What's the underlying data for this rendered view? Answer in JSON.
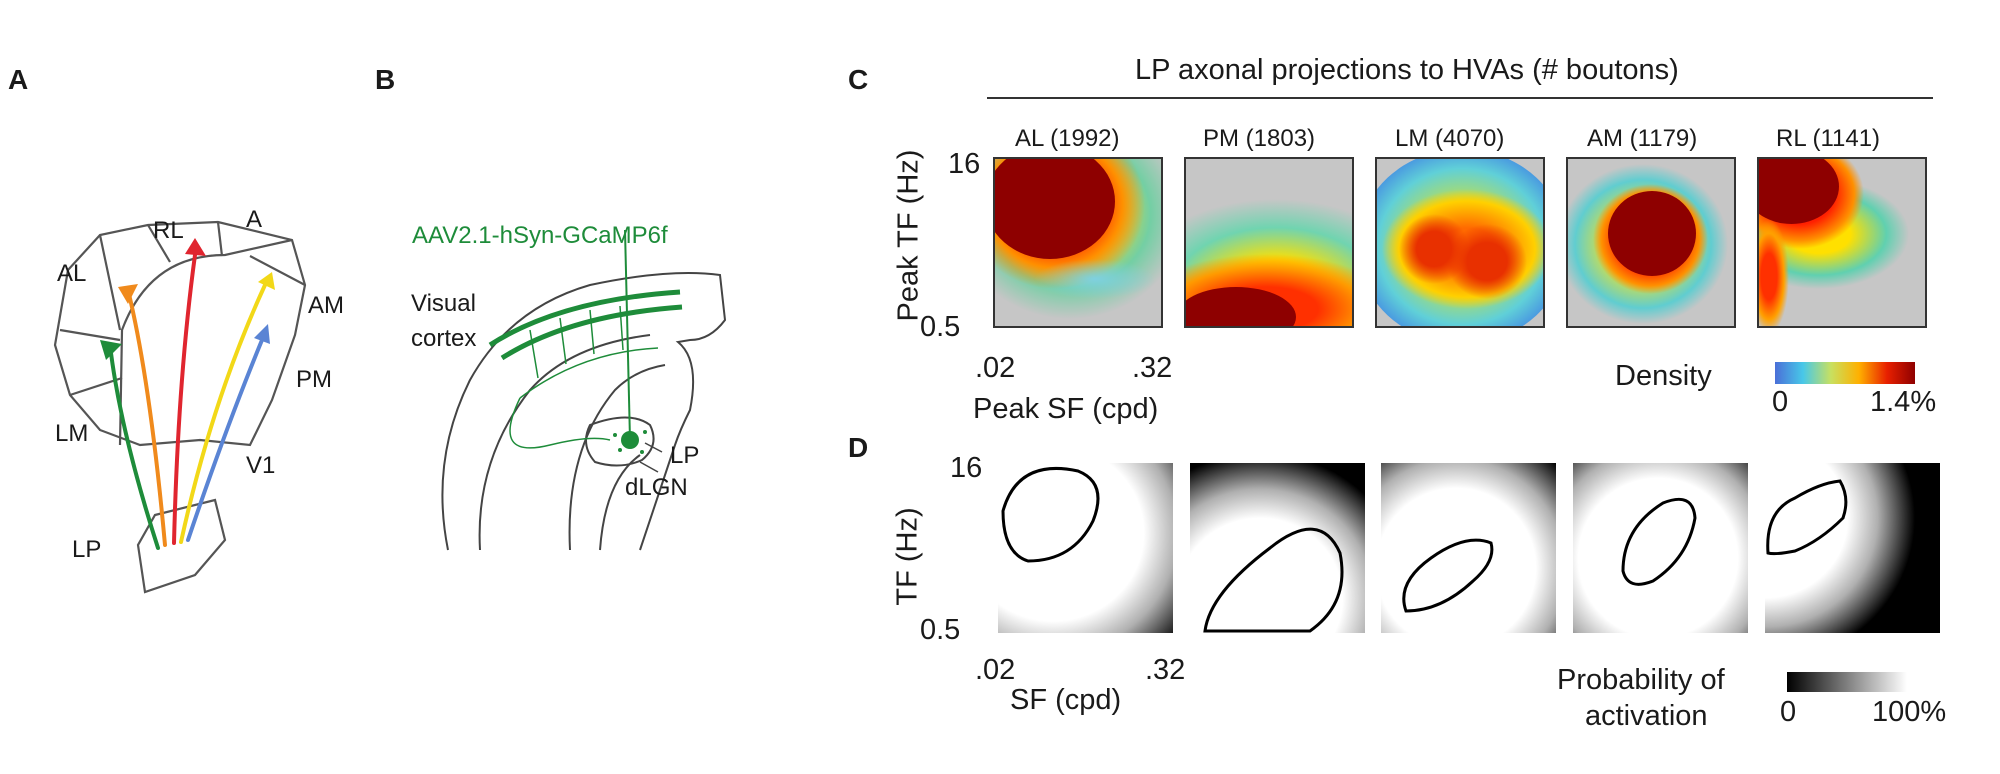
{
  "panel_labels": {
    "a": "A",
    "b": "B",
    "c": "C",
    "d": "D"
  },
  "panel_a": {
    "areas": {
      "rl": "RL",
      "a": "A",
      "al": "AL",
      "am": "AM",
      "pm": "PM",
      "lm": "LM",
      "v1": "V1",
      "lp": "LP"
    },
    "arrow_colors": {
      "lm": "#1e8c3a",
      "al": "#f08a1c",
      "rl": "#e0252f",
      "am": "#f2d818",
      "pm": "#5a84d4"
    }
  },
  "panel_b": {
    "virus": "AAV2.1-hSyn-GCaMP6f",
    "cortex_line1": "Visual",
    "cortex_line2": "cortex",
    "lp": "LP",
    "dlgn": "dLGN",
    "green": "#1e8c3a"
  },
  "panel_c": {
    "title": "LP axonal projections to HVAs (# boutons)",
    "ylabel": "Peak TF (Hz)",
    "xlabel": "Peak SF (cpd)",
    "y_top": "16",
    "y_bottom": "0.5",
    "x_left": ".02",
    "x_right": ".32",
    "colorbar_label": "Density",
    "colorbar_min": "0",
    "colorbar_max": "1.4%",
    "areas": [
      {
        "name": "AL (1992)"
      },
      {
        "name": "PM (1803)"
      },
      {
        "name": "LM (4070)"
      },
      {
        "name": "AM (1179)"
      },
      {
        "name": "RL (1141)"
      }
    ]
  },
  "panel_d": {
    "ylabel": "TF (Hz)",
    "xlabel": "SF (cpd)",
    "y_top": "16",
    "y_bottom": "0.5",
    "x_left": ".02",
    "x_right": ".32",
    "colorbar_label_1": "Probability of",
    "colorbar_label_2": "activation",
    "colorbar_min": "0",
    "colorbar_max": "100%"
  }
}
